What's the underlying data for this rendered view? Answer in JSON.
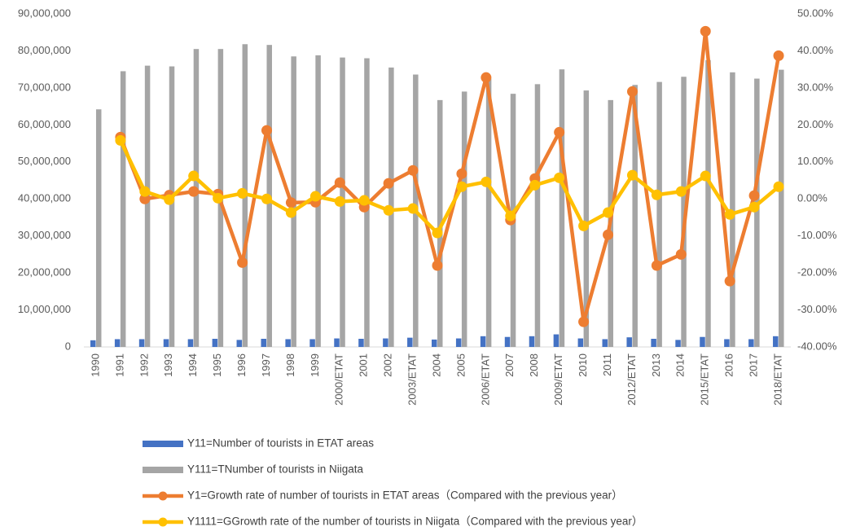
{
  "chart_data": {
    "type": "bar-line",
    "categories": [
      "1990",
      "1991",
      "1992",
      "1993",
      "1994",
      "1995",
      "1996",
      "1997",
      "1998",
      "1999",
      "2000/ETAT",
      "2001",
      "2002",
      "2003/ETAT",
      "2004",
      "2005",
      "2006/ETAT",
      "2007",
      "2008",
      "2009/ETAT",
      "2010",
      "2011",
      "2012/ETAT",
      "2013",
      "2014",
      "2015/ETAT",
      "2016",
      "2017",
      "2018/ETAT"
    ],
    "series": [
      {
        "name": "Y11=Number of tourists in ETAT areas",
        "type": "bar",
        "color": "#4472c4",
        "values": [
          1800000,
          2100000,
          2100000,
          2100000,
          2100000,
          2200000,
          1900000,
          2200000,
          2100000,
          2100000,
          2300000,
          2200000,
          2300000,
          2500000,
          2000000,
          2300000,
          2900000,
          2700000,
          2900000,
          3400000,
          2300000,
          2100000,
          2600000,
          2200000,
          1900000,
          2700000,
          2100000,
          2100000,
          2900000
        ]
      },
      {
        "name": "Y111=TNumber of tourists in Niigata",
        "type": "bar",
        "color": "#a5a5a5",
        "values": [
          64200000,
          74500000,
          76000000,
          75800000,
          80500000,
          80500000,
          81800000,
          81600000,
          78500000,
          78800000,
          78200000,
          78000000,
          75500000,
          73600000,
          66700000,
          69000000,
          72500000,
          68400000,
          71000000,
          75000000,
          69300000,
          66700000,
          70800000,
          71600000,
          73000000,
          77500000,
          74200000,
          72500000,
          74900000
        ]
      },
      {
        "name": "Y1=Growth rate of number of tourists in ETAT areas（Compared with the previous year）",
        "type": "line",
        "axis": "y2",
        "color": "#ed7d31",
        "values": [
          null,
          16.7,
          0,
          1.0,
          2.0,
          1.3,
          -17.2,
          18.5,
          -1.0,
          -0.9,
          4.4,
          -2.2,
          4.2,
          7.7,
          -18.0,
          6.8,
          32.8,
          -5.7,
          5.5,
          18.0,
          -33.2,
          -9.7,
          29.0,
          -18.0,
          -15.0,
          45.3,
          -22.2,
          0.9,
          38.7
        ]
      },
      {
        "name": "Y1111=GGrowth rate of the number of tourists in Niigata（Compared with the previous year）",
        "type": "line",
        "axis": "y2",
        "color": "#ffc000",
        "values": [
          null,
          15.8,
          2.0,
          -0.2,
          6.2,
          0.2,
          1.5,
          0,
          -3.7,
          0.7,
          -0.7,
          -0.4,
          -3.1,
          -2.6,
          -9.2,
          3.3,
          4.6,
          -4.6,
          3.7,
          5.7,
          -7.3,
          -3.7,
          6.4,
          1.1,
          2.0,
          6.2,
          -4.2,
          -2.2,
          3.3
        ]
      }
    ],
    "ylim": [
      0,
      90000000
    ],
    "yticks": [
      {
        "value": 0,
        "label": "0"
      },
      {
        "value": 10000000,
        "label": "10,000,000"
      },
      {
        "value": 20000000,
        "label": "20,000,000"
      },
      {
        "value": 30000000,
        "label": "30,000,000"
      },
      {
        "value": 40000000,
        "label": "40,000,000"
      },
      {
        "value": 50000000,
        "label": "50,000,000"
      },
      {
        "value": 60000000,
        "label": "60,000,000"
      },
      {
        "value": 70000000,
        "label": "70,000,000"
      },
      {
        "value": 80000000,
        "label": "80,000,000"
      },
      {
        "value": 90000000,
        "label": "90,000,000"
      }
    ],
    "y2lim": [
      -40,
      50
    ],
    "y2ticks": [
      {
        "value": -40,
        "label": "-40.00%"
      },
      {
        "value": -30,
        "label": "-30.00%"
      },
      {
        "value": -20,
        "label": "-20.00%"
      },
      {
        "value": -10,
        "label": "-10.00%"
      },
      {
        "value": 0,
        "label": "0.00%"
      },
      {
        "value": 10,
        "label": "10.00%"
      },
      {
        "value": 20,
        "label": "20.00%"
      },
      {
        "value": 30,
        "label": "30.00%"
      },
      {
        "value": 40,
        "label": "40.00%"
      },
      {
        "value": 50,
        "label": "50.00%"
      }
    ],
    "legend": "bottom"
  }
}
